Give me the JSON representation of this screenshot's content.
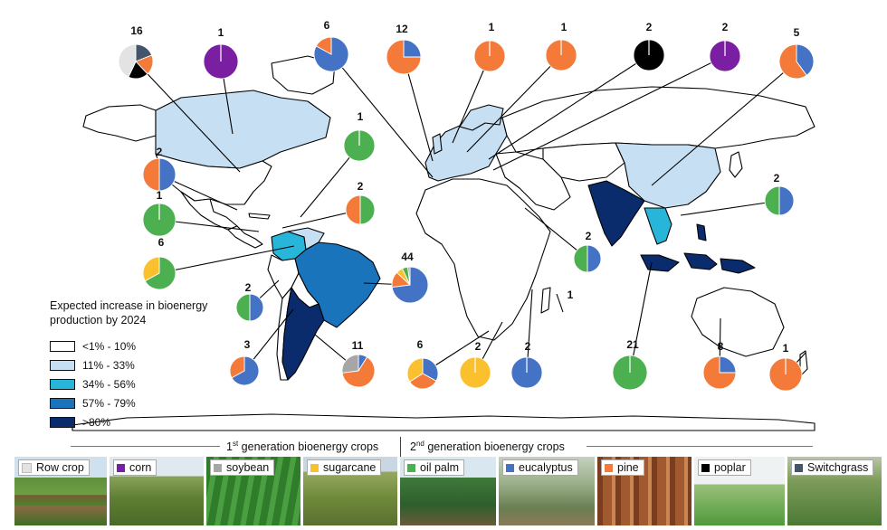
{
  "colors": {
    "row_crop": "#e3e3e3",
    "corn": "#7a1fa2",
    "soybean": "#a6a6a6",
    "sugarcane": "#fbc02d",
    "oil_palm": "#4caf50",
    "eucalyptus": "#4472c4",
    "pine": "#f47a3a",
    "poplar": "#000000",
    "switchgrass": "#44546a"
  },
  "legend": {
    "title": "Expected increase in bioenergy production by 2024",
    "items": [
      {
        "label": "<1% - 10%",
        "color": "#ffffff"
      },
      {
        "label": "11% - 33%",
        "color": "#c6dff2"
      },
      {
        "label": "34% - 56%",
        "color": "#27b6d9"
      },
      {
        "label": "57% - 79%",
        "color": "#1a74bb"
      },
      {
        "label": ">80%",
        "color": "#0b2c6c"
      }
    ]
  },
  "generations": {
    "first": "1st generation bioenergy crops",
    "first_ord": "1",
    "first_sup": "st",
    "first_rest": " generation bioenergy crops",
    "second_ord": "2",
    "second_sup": "nd",
    "second_rest": " generation bioenergy crops"
  },
  "crops": [
    {
      "label": "Row crop",
      "key": "row_crop",
      "icon": "swatch-light-gray"
    },
    {
      "label": "corn",
      "key": "corn",
      "icon": "swatch-purple"
    },
    {
      "label": "soybean",
      "key": "soybean",
      "icon": "swatch-gray"
    },
    {
      "label": "sugarcane",
      "key": "sugarcane",
      "icon": "swatch-yellow"
    },
    {
      "label": "oil palm",
      "key": "oil_palm",
      "icon": "swatch-green"
    },
    {
      "label": "eucalyptus",
      "key": "eucalyptus",
      "icon": "swatch-blue"
    },
    {
      "label": "pine",
      "key": "pine",
      "icon": "swatch-orange"
    },
    {
      "label": "poplar",
      "key": "poplar",
      "icon": "swatch-black"
    },
    {
      "label": "Switchgrass",
      "key": "switchgrass",
      "icon": "swatch-slate"
    }
  ],
  "pies": [
    {
      "count": "16",
      "region": "Canada / northern North America",
      "slices": [
        {
          "crop": "switchgrass",
          "share": 0.19
        },
        {
          "crop": "pine",
          "share": 0.19
        },
        {
          "crop": "poplar",
          "share": 0.19
        },
        {
          "crop": "row_crop",
          "share": 0.43
        }
      ]
    },
    {
      "count": "1",
      "region": "North America (corn)",
      "slices": [
        {
          "crop": "corn",
          "share": 1
        }
      ]
    },
    {
      "count": "6",
      "region": "Europe",
      "slices": [
        {
          "crop": "eucalyptus",
          "share": 0.83
        },
        {
          "crop": "pine",
          "share": 0.17
        }
      ]
    },
    {
      "count": "12",
      "region": "Europe",
      "slices": [
        {
          "crop": "eucalyptus",
          "share": 0.25
        },
        {
          "crop": "pine",
          "share": 0.75
        }
      ]
    },
    {
      "count": "1",
      "region": "Europe",
      "slices": [
        {
          "crop": "pine",
          "share": 1
        }
      ]
    },
    {
      "count": "1",
      "region": "Europe",
      "slices": [
        {
          "crop": "pine",
          "share": 1
        }
      ]
    },
    {
      "count": "2",
      "region": "Eastern Europe",
      "slices": [
        {
          "crop": "poplar",
          "share": 1
        }
      ]
    },
    {
      "count": "2",
      "region": "Eastern Europe",
      "slices": [
        {
          "crop": "corn",
          "share": 1
        }
      ]
    },
    {
      "count": "5",
      "region": "China",
      "slices": [
        {
          "crop": "eucalyptus",
          "share": 0.4
        },
        {
          "crop": "pine",
          "share": 0.6
        }
      ]
    },
    {
      "count": "1",
      "region": "Caribbean / Central America",
      "slices": [
        {
          "crop": "oil_palm",
          "share": 1
        }
      ]
    },
    {
      "count": "2",
      "region": "United States",
      "slices": [
        {
          "crop": "eucalyptus",
          "share": 0.5
        },
        {
          "crop": "pine",
          "share": 0.5
        }
      ]
    },
    {
      "count": "1",
      "region": "Central America",
      "slices": [
        {
          "crop": "oil_palm",
          "share": 1
        }
      ]
    },
    {
      "count": "2",
      "region": "Central America",
      "slices": [
        {
          "crop": "oil_palm",
          "share": 0.5
        },
        {
          "crop": "pine",
          "share": 0.5
        }
      ]
    },
    {
      "count": "6",
      "region": "Colombia",
      "slices": [
        {
          "crop": "oil_palm",
          "share": 0.67
        },
        {
          "crop": "sugarcane",
          "share": 0.33
        }
      ]
    },
    {
      "count": "44",
      "region": "Brazil",
      "slices": [
        {
          "crop": "eucalyptus",
          "share": 0.73
        },
        {
          "crop": "pine",
          "share": 0.14
        },
        {
          "crop": "sugarcane",
          "share": 0.06
        },
        {
          "crop": "oil_palm",
          "share": 0.05
        },
        {
          "crop": "soybean",
          "share": 0.02
        }
      ]
    },
    {
      "count": "2",
      "region": "Peru",
      "slices": [
        {
          "crop": "eucalyptus",
          "share": 0.5
        },
        {
          "crop": "oil_palm",
          "share": 0.5
        }
      ]
    },
    {
      "count": "3",
      "region": "Chile",
      "slices": [
        {
          "crop": "eucalyptus",
          "share": 0.67
        },
        {
          "crop": "pine",
          "share": 0.33
        }
      ]
    },
    {
      "count": "11",
      "region": "Argentina",
      "slices": [
        {
          "crop": "eucalyptus",
          "share": 0.09
        },
        {
          "crop": "pine",
          "share": 0.64
        },
        {
          "crop": "soybean",
          "share": 0.27
        }
      ]
    },
    {
      "count": "6",
      "region": "South Africa",
      "slices": [
        {
          "crop": "eucalyptus",
          "share": 0.33
        },
        {
          "crop": "pine",
          "share": 0.33
        },
        {
          "crop": "sugarcane",
          "share": 0.34
        }
      ]
    },
    {
      "count": "2",
      "region": "Southern Africa",
      "slices": [
        {
          "crop": "sugarcane",
          "share": 1
        }
      ]
    },
    {
      "count": "2",
      "region": "Mozambique",
      "slices": [
        {
          "crop": "eucalyptus",
          "share": 1
        }
      ]
    },
    {
      "count": "1",
      "region": "Madagascar",
      "slices": []
    },
    {
      "count": "2",
      "region": "East Africa",
      "slices": [
        {
          "crop": "eucalyptus",
          "share": 0.5
        },
        {
          "crop": "oil_palm",
          "share": 0.5
        }
      ]
    },
    {
      "count": "21",
      "region": "Indonesia / Malaysia",
      "slices": [
        {
          "crop": "oil_palm",
          "share": 1
        }
      ]
    },
    {
      "count": "2",
      "region": "Southeast Asia",
      "slices": [
        {
          "crop": "eucalyptus",
          "share": 0.5
        },
        {
          "crop": "oil_palm",
          "share": 0.5
        }
      ]
    },
    {
      "count": "8",
      "region": "Australia",
      "slices": [
        {
          "crop": "eucalyptus",
          "share": 0.25
        },
        {
          "crop": "pine",
          "share": 0.75
        }
      ]
    },
    {
      "count": "1",
      "region": "New Zealand",
      "slices": [
        {
          "crop": "pine",
          "share": 1
        }
      ]
    }
  ]
}
